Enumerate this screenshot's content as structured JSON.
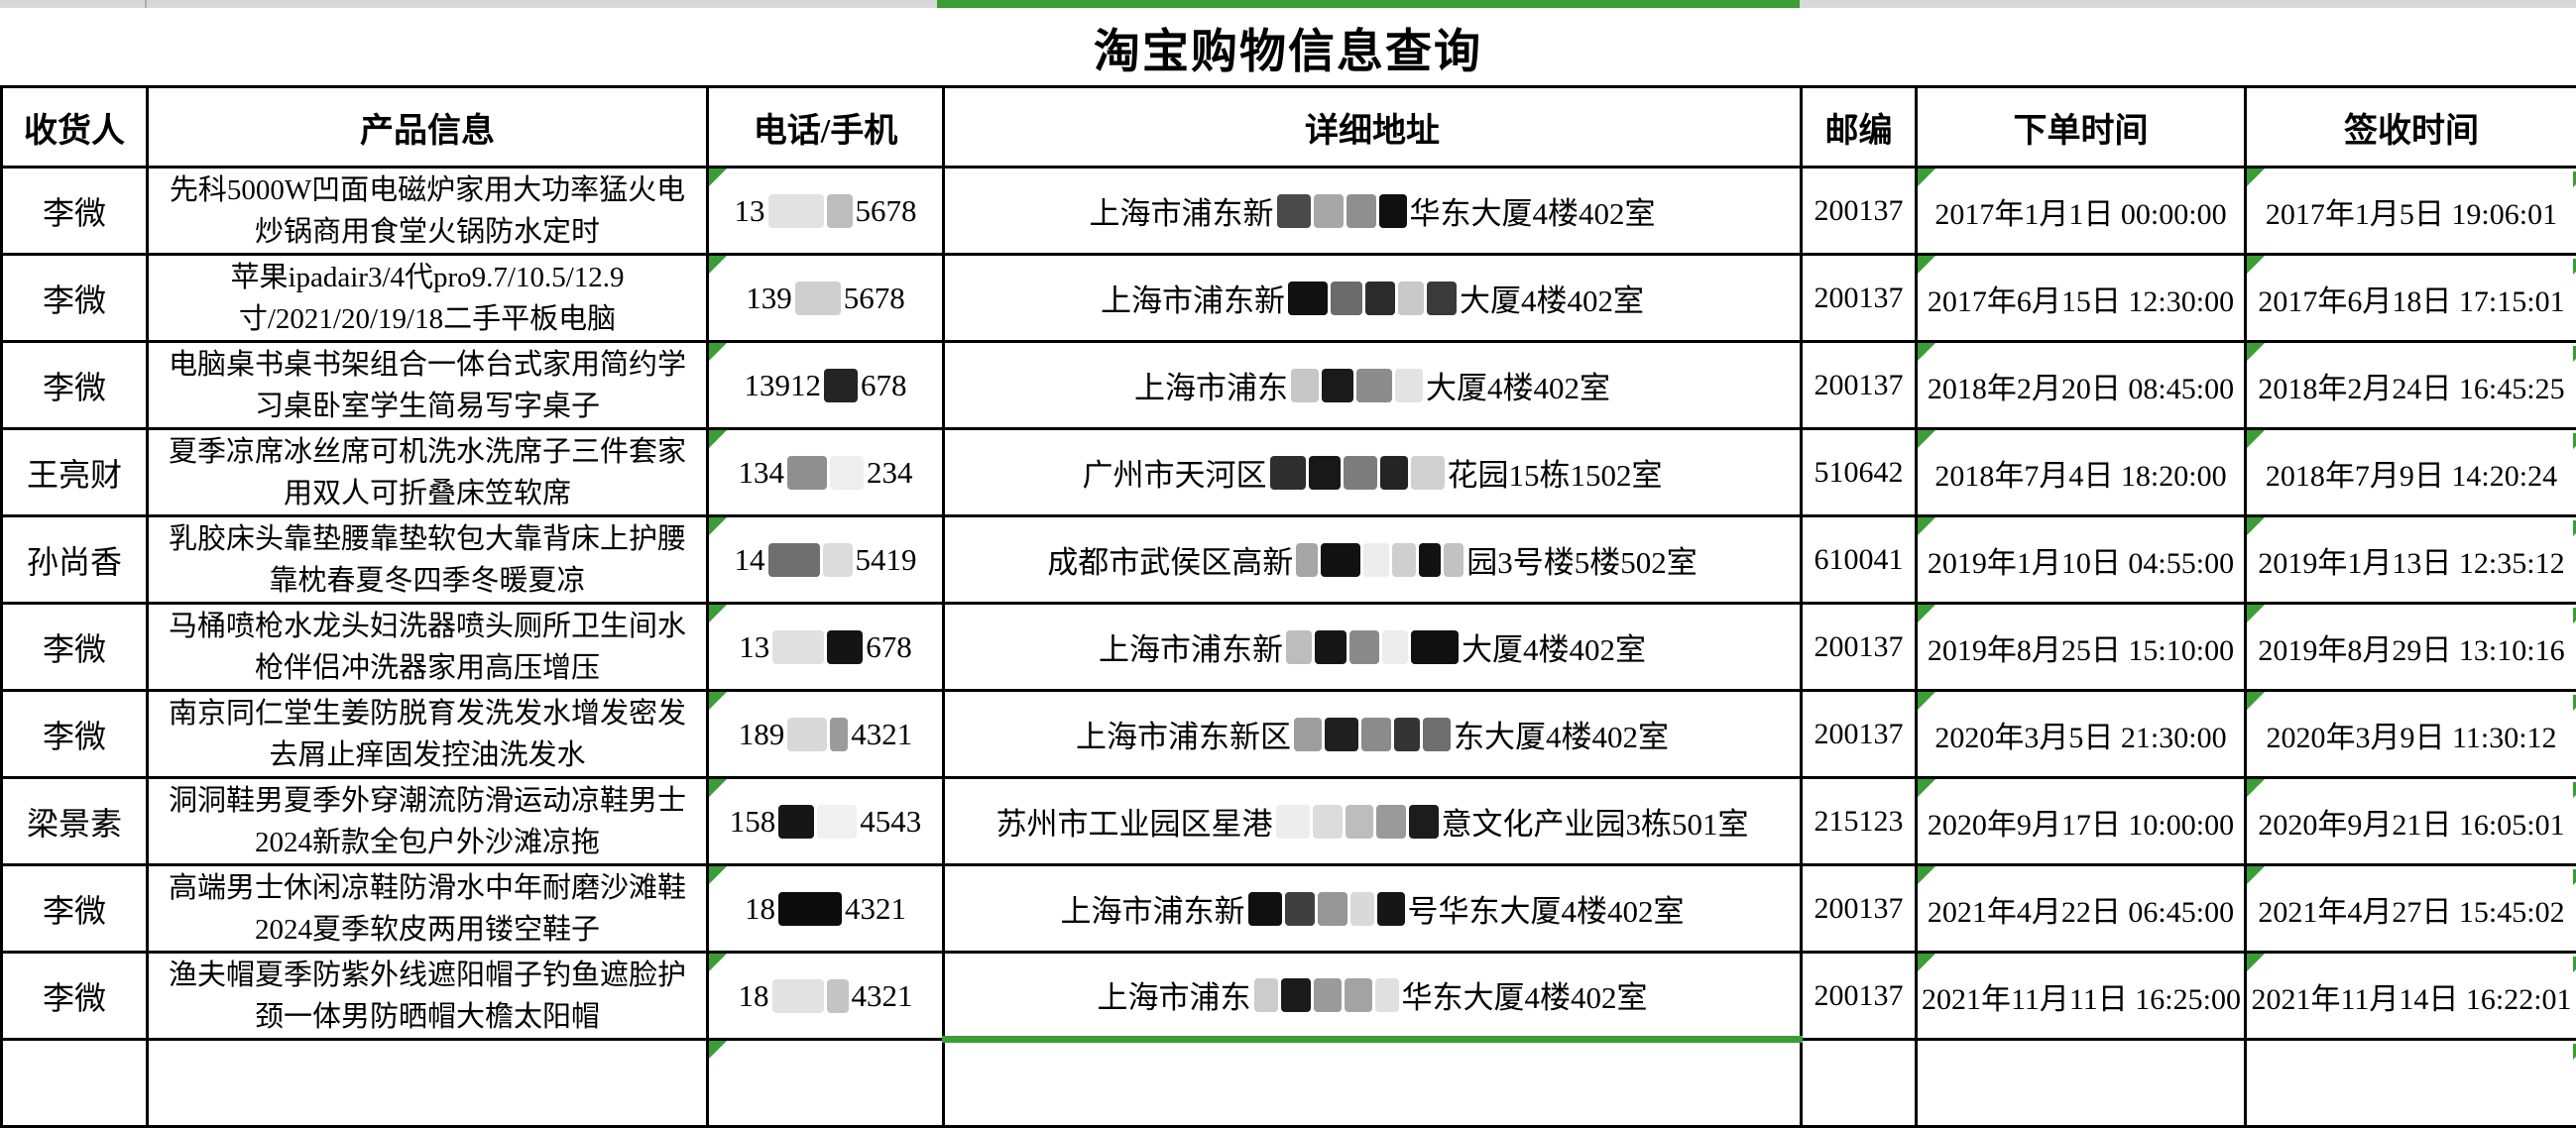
{
  "title": "淘宝购物信息查询",
  "colors": {
    "accent_green": "#3A9D35",
    "strip_gray": "#D8D8D8",
    "border": "#000000"
  },
  "columns": [
    "收货人",
    "产品信息",
    "电话/手机",
    "详细地址",
    "邮编",
    "下单时间",
    "签收时间"
  ],
  "rows": [
    {
      "recipient": "李微",
      "product": "先科5000W凹面电磁炉家用大功率猛火电炒锅商用食堂火锅防水定时",
      "phone": [
        {
          "t": "13"
        },
        {
          "b": {
            "w": 56,
            "c": "#e2e2e2"
          }
        },
        {
          "b": {
            "w": 26,
            "c": "#bdbdbd"
          }
        },
        {
          "t": "5678"
        }
      ],
      "address": [
        {
          "t": "上海市浦东新"
        },
        {
          "b": {
            "w": 34,
            "c": "#4a4a4a"
          }
        },
        {
          "b": {
            "w": 30,
            "c": "#a7a7a7"
          }
        },
        {
          "b": {
            "w": 30,
            "c": "#8f8f8f"
          }
        },
        {
          "b": {
            "w": 28,
            "c": "#0f0f0f"
          }
        },
        {
          "t": "华东大厦4楼402室"
        }
      ],
      "zip": "200137",
      "order_time": "2017年1月1日 00:00:00",
      "sign_time": "2017年1月5日 19:06:01"
    },
    {
      "recipient": "李微",
      "product": "苹果ipadair3/4代pro9.7/10.5/12.9寸/2021/20/19/18二手平板电脑",
      "phone": [
        {
          "t": "139"
        },
        {
          "b": {
            "w": 46,
            "c": "#cfcfcf"
          }
        },
        {
          "t": "5678"
        }
      ],
      "address": [
        {
          "t": "上海市浦东新"
        },
        {
          "b": {
            "w": 40,
            "c": "#111111"
          }
        },
        {
          "b": {
            "w": 32,
            "c": "#6b6b6b"
          }
        },
        {
          "b": {
            "w": 30,
            "c": "#2b2b2b"
          }
        },
        {
          "b": {
            "w": 26,
            "c": "#c9c9c9"
          }
        },
        {
          "b": {
            "w": 30,
            "c": "#3a3a3a"
          }
        },
        {
          "t": "大厦4楼402室"
        }
      ],
      "zip": "200137",
      "order_time": "2017年6月15日 12:30:00",
      "sign_time": "2017年6月18日 17:15:01"
    },
    {
      "recipient": "李微",
      "product": "电脑桌书桌书架组合一体台式家用简约学习桌卧室学生简易写字桌子",
      "phone": [
        {
          "t": "13912"
        },
        {
          "b": {
            "w": 34,
            "c": "#242424"
          }
        },
        {
          "t": "678"
        }
      ],
      "address": [
        {
          "t": "上海市浦东"
        },
        {
          "b": {
            "w": 28,
            "c": "#c7c7c7"
          }
        },
        {
          "b": {
            "w": 32,
            "c": "#1a1a1a"
          }
        },
        {
          "b": {
            "w": 36,
            "c": "#8c8c8c"
          }
        },
        {
          "b": {
            "w": 28,
            "c": "#e3e3e3"
          }
        },
        {
          "t": "大厦4楼402室"
        }
      ],
      "zip": "200137",
      "order_time": "2018年2月20日 08:45:00",
      "sign_time": "2018年2月24日 16:45:25"
    },
    {
      "recipient": "王亮财",
      "product": "夏季凉席冰丝席可机洗水洗席子三件套家用双人可折叠床笠软席",
      "phone": [
        {
          "t": "134"
        },
        {
          "b": {
            "w": 40,
            "c": "#8f8f8f"
          }
        },
        {
          "b": {
            "w": 34,
            "c": "#eeeeee"
          }
        },
        {
          "t": "234"
        }
      ],
      "address": [
        {
          "t": "广州市天河区"
        },
        {
          "b": {
            "w": 36,
            "c": "#2e2e2e"
          }
        },
        {
          "b": {
            "w": 32,
            "c": "#181818"
          }
        },
        {
          "b": {
            "w": 34,
            "c": "#7d7d7d"
          }
        },
        {
          "b": {
            "w": 28,
            "c": "#242424"
          }
        },
        {
          "b": {
            "w": 34,
            "c": "#d0d0d0"
          }
        },
        {
          "t": "花园15栋1502室"
        }
      ],
      "zip": "510642",
      "order_time": "2018年7月4日 18:20:00",
      "sign_time": "2018年7月9日 14:20:24"
    },
    {
      "recipient": "孙尚香",
      "product": "乳胶床头靠垫腰靠垫软包大靠背床上护腰靠枕春夏冬四季冬暖夏凉",
      "phone": [
        {
          "t": "14"
        },
        {
          "b": {
            "w": 52,
            "c": "#6f6f6f"
          }
        },
        {
          "b": {
            "w": 30,
            "c": "#dcdcdc"
          }
        },
        {
          "t": "5419"
        }
      ],
      "address": [
        {
          "t": "成都市武侯区高新"
        },
        {
          "b": {
            "w": 22,
            "c": "#a5a5a5"
          }
        },
        {
          "b": {
            "w": 40,
            "c": "#121212"
          }
        },
        {
          "b": {
            "w": 26,
            "c": "#ededed"
          }
        },
        {
          "b": {
            "w": 24,
            "c": "#cfcfcf"
          }
        },
        {
          "b": {
            "w": 22,
            "c": "#121212"
          }
        },
        {
          "b": {
            "w": 20,
            "c": "#c2c2c2"
          }
        },
        {
          "t": "园3号楼5楼502室"
        }
      ],
      "zip": "610041",
      "order_time": "2019年1月10日 04:55:00",
      "sign_time": "2019年1月13日 12:35:12"
    },
    {
      "recipient": "李微",
      "product": "马桶喷枪水龙头妇洗器喷头厕所卫生间水枪伴侣冲洗器家用高压增压",
      "phone": [
        {
          "t": "13"
        },
        {
          "b": {
            "w": 52,
            "c": "#e0e0e0"
          }
        },
        {
          "b": {
            "w": 36,
            "c": "#141414"
          }
        },
        {
          "t": "678"
        }
      ],
      "address": [
        {
          "t": "上海市浦东新"
        },
        {
          "b": {
            "w": 26,
            "c": "#bdbdbd"
          }
        },
        {
          "b": {
            "w": 32,
            "c": "#161616"
          }
        },
        {
          "b": {
            "w": 30,
            "c": "#8a8a8a"
          }
        },
        {
          "b": {
            "w": 26,
            "c": "#ececec"
          }
        },
        {
          "b": {
            "w": 48,
            "c": "#101010"
          }
        },
        {
          "t": "大厦4楼402室"
        }
      ],
      "zip": "200137",
      "order_time": "2019年8月25日 15:10:00",
      "sign_time": "2019年8月29日 13:10:16"
    },
    {
      "recipient": "李微",
      "product": "南京同仁堂生姜防脱育发洗发水增发密发去屑止痒固发控油洗发水",
      "phone": [
        {
          "t": "189"
        },
        {
          "b": {
            "w": 40,
            "c": "#d9d9d9"
          }
        },
        {
          "b": {
            "w": 18,
            "c": "#9b9b9b"
          }
        },
        {
          "t": "4321"
        }
      ],
      "address": [
        {
          "t": "上海市浦东新区"
        },
        {
          "b": {
            "w": 28,
            "c": "#9e9e9e"
          }
        },
        {
          "b": {
            "w": 34,
            "c": "#1f1f1f"
          }
        },
        {
          "b": {
            "w": 30,
            "c": "#8b8b8b"
          }
        },
        {
          "b": {
            "w": 26,
            "c": "#343434"
          }
        },
        {
          "b": {
            "w": 28,
            "c": "#6f6f6f"
          }
        },
        {
          "t": "东大厦4楼402室"
        }
      ],
      "zip": "200137",
      "order_time": "2020年3月5日 21:30:00",
      "sign_time": "2020年3月9日 11:30:12"
    },
    {
      "recipient": "梁景素",
      "product": "洞洞鞋男夏季外穿潮流防滑运动凉鞋男士2024新款全包户外沙滩凉拖",
      "phone": [
        {
          "t": "158"
        },
        {
          "b": {
            "w": 36,
            "c": "#161616"
          }
        },
        {
          "b": {
            "w": 40,
            "c": "#f0f0f0"
          }
        },
        {
          "t": "4543"
        }
      ],
      "address": [
        {
          "t": "苏州市工业园区星港"
        },
        {
          "b": {
            "w": 34,
            "c": "#ededed"
          }
        },
        {
          "b": {
            "w": 30,
            "c": "#dcdcdc"
          }
        },
        {
          "b": {
            "w": 28,
            "c": "#bdbdbd"
          }
        },
        {
          "b": {
            "w": 30,
            "c": "#9a9a9a"
          }
        },
        {
          "b": {
            "w": 30,
            "c": "#1c1c1c"
          }
        },
        {
          "t": "意文化产业园3栋501室"
        }
      ],
      "zip": "215123",
      "order_time": "2020年9月17日 10:00:00",
      "sign_time": "2020年9月21日 16:05:01"
    },
    {
      "recipient": "李微",
      "product": "高端男士休闲凉鞋防滑水中年耐磨沙滩鞋2024夏季软皮两用镂空鞋子",
      "phone": [
        {
          "t": "18"
        },
        {
          "b": {
            "w": 64,
            "c": "#0c0c0c"
          }
        },
        {
          "t": "4321"
        }
      ],
      "address": [
        {
          "t": "上海市浦东新"
        },
        {
          "b": {
            "w": 34,
            "c": "#101010"
          }
        },
        {
          "b": {
            "w": 30,
            "c": "#3f3f3f"
          }
        },
        {
          "b": {
            "w": 30,
            "c": "#969696"
          }
        },
        {
          "b": {
            "w": 24,
            "c": "#d9d9d9"
          }
        },
        {
          "b": {
            "w": 28,
            "c": "#161616"
          }
        },
        {
          "t": "号华东大厦4楼402室"
        }
      ],
      "zip": "200137",
      "order_time": "2021年4月22日 06:45:00",
      "sign_time": "2021年4月27日 15:45:02"
    },
    {
      "recipient": "李微",
      "product": "渔夫帽夏季防紫外线遮阳帽子钓鱼遮脸护颈一体男防晒帽大檐太阳帽",
      "phone": [
        {
          "t": "18"
        },
        {
          "b": {
            "w": 52,
            "c": "#e2e2e2"
          }
        },
        {
          "b": {
            "w": 22,
            "c": "#c4c4c4"
          }
        },
        {
          "t": "4321"
        }
      ],
      "address": [
        {
          "t": "上海市浦东"
        },
        {
          "b": {
            "w": 24,
            "c": "#cccccc"
          }
        },
        {
          "b": {
            "w": 30,
            "c": "#1b1b1b"
          }
        },
        {
          "b": {
            "w": 28,
            "c": "#9b9b9b"
          }
        },
        {
          "b": {
            "w": 28,
            "c": "#a3a3a3"
          }
        },
        {
          "b": {
            "w": 24,
            "c": "#e0e0e0"
          }
        },
        {
          "t": "华东大厦4楼402室"
        }
      ],
      "zip": "200137",
      "order_time": "2021年11月11日 16:25:00",
      "sign_time": "2021年11月14日 16:22:01"
    }
  ]
}
